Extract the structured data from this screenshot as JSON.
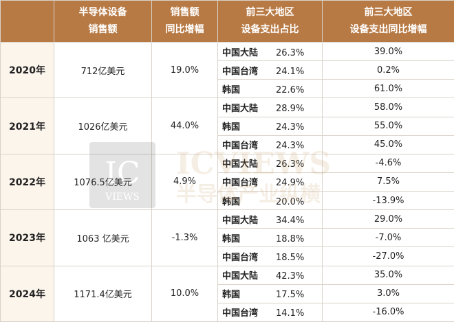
{
  "header": {
    "col1": "",
    "col2_line1": "半导体设备",
    "col2_line2": "销售额",
    "col3_line1": "销售额",
    "col3_line2": "同比增幅",
    "col4_line1": "前三大地区",
    "col4_line2": "设备支出占比",
    "col5_line1": "前三大地区",
    "col5_line2": "设备支出同比增幅"
  },
  "rows": [
    {
      "year": "2020年",
      "sales": "712亿美元",
      "yoy": "19.0%",
      "regions": [
        {
          "name": "中国大陆",
          "share": "26.3%",
          "growth": "39.0%"
        },
        {
          "name": "中国台湾",
          "share": "24.1%",
          "growth": "0.2%"
        },
        {
          "name": "韩国",
          "share": "22.6%",
          "growth": "61.0%"
        }
      ]
    },
    {
      "year": "2021年",
      "sales": "1026亿美元",
      "yoy": "44.0%",
      "regions": [
        {
          "name": "中国大陆",
          "share": "28.9%",
          "growth": "58.0%"
        },
        {
          "name": "韩国",
          "share": "24.3%",
          "growth": "55.0%"
        },
        {
          "name": "中国台湾",
          "share": "24.3%",
          "growth": "45.0%"
        }
      ]
    },
    {
      "year": "2022年",
      "sales": "1076.5亿美元",
      "yoy": "4.9%",
      "regions": [
        {
          "name": "中国大陆",
          "share": "26.3%",
          "growth": "-4.6%"
        },
        {
          "name": "中国台湾",
          "share": "24.9%",
          "growth": "7.5%"
        },
        {
          "name": "韩国",
          "share": "20.0%",
          "growth": "-13.9%"
        }
      ]
    },
    {
      "year": "2023年",
      "sales": "1063 亿美元",
      "yoy": "-1.3%",
      "regions": [
        {
          "name": "中国大陆",
          "share": "34.4%",
          "growth": "29.0%"
        },
        {
          "name": "韩国",
          "share": "18.8%",
          "growth": "-7.0%"
        },
        {
          "name": "中国台湾",
          "share": "18.5%",
          "growth": "-27.0%"
        }
      ]
    },
    {
      "year": "2024年",
      "sales": "1171.4亿美元",
      "yoy": "10.0%",
      "regions": [
        {
          "name": "中国大陆",
          "share": "42.3%",
          "growth": "35.0%"
        },
        {
          "name": "韩国",
          "share": "17.5%",
          "growth": "3.0%"
        },
        {
          "name": "中国台湾",
          "share": "14.1%",
          "growth": "-16.0%"
        }
      ]
    }
  ],
  "watermark": {
    "logo": "IC",
    "logo_sub": "VIEWS",
    "title": "ICVIEWS",
    "subtitle": "半导体产业纵横"
  }
}
